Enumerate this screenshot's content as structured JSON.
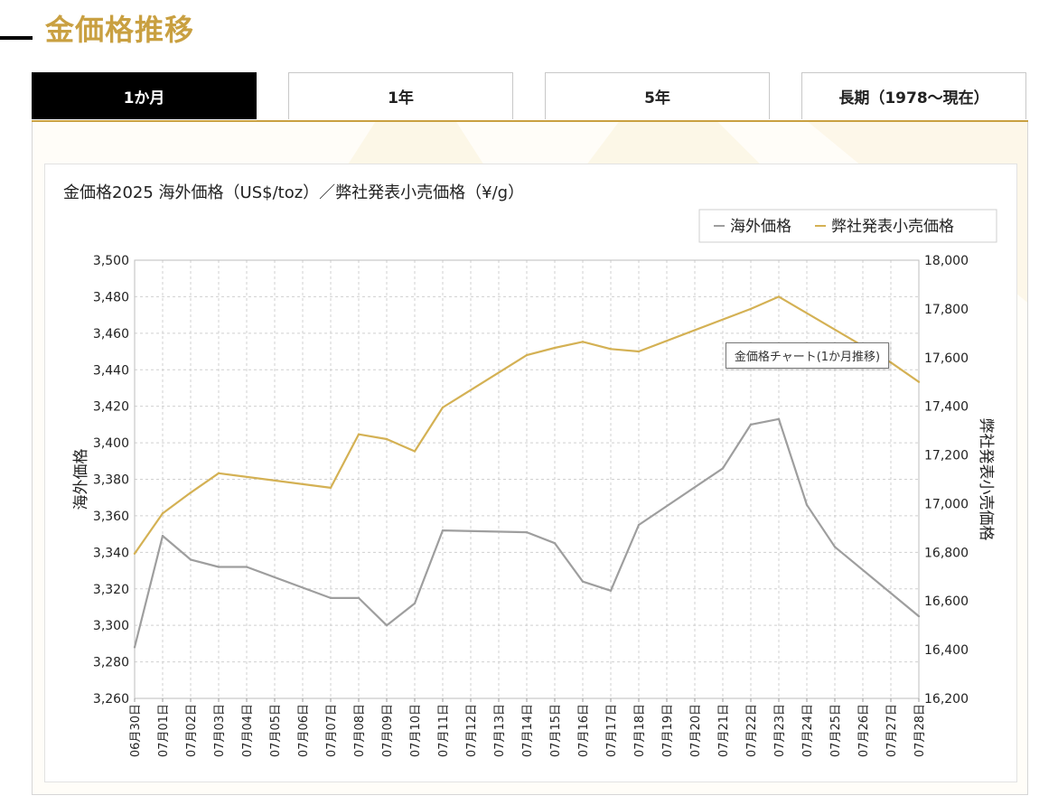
{
  "page": {
    "title": "金価格推移"
  },
  "tabs": [
    {
      "label": "1か月",
      "active": true
    },
    {
      "label": "1年",
      "active": false
    },
    {
      "label": "5年",
      "active": false
    },
    {
      "label": "長期（1978～現在）",
      "active": false
    }
  ],
  "tooltip": {
    "text": "金価格チャート(1か月推移)"
  },
  "colors": {
    "accent": "#c9a041",
    "overseas": "#9e9e9e",
    "retail": "#d4b154"
  },
  "chart_data": {
    "type": "line",
    "title": "金価格2025 海外価格（US$/toz）／弊社発表小売価格（¥/g）",
    "legend": {
      "position": "top-right",
      "entries": [
        "海外価格",
        "弊社発表小売価格"
      ]
    },
    "grid": true,
    "x": [
      "06月30日",
      "07月01日",
      "07月02日",
      "07月03日",
      "07月04日",
      "07月05日",
      "07月06日",
      "07月07日",
      "07月08日",
      "07月09日",
      "07月10日",
      "07月11日",
      "07月12日",
      "07月13日",
      "07月14日",
      "07月15日",
      "07月16日",
      "07月17日",
      "07月18日",
      "07月19日",
      "07月20日",
      "07月21日",
      "07月22日",
      "07月23日",
      "07月24日",
      "07月25日",
      "07月26日",
      "07月27日",
      "07月28日"
    ],
    "y_left": {
      "label": "海外価格",
      "range": [
        3260,
        3500
      ],
      "ticks": [
        "3,260",
        "3,280",
        "3,300",
        "3,320",
        "3,340",
        "3,360",
        "3,380",
        "3,400",
        "3,420",
        "3,440",
        "3,460",
        "3,480",
        "3,500"
      ]
    },
    "y_right": {
      "label": "弊社発表小売価格",
      "range": [
        16200,
        18000
      ],
      "ticks": [
        "16,200",
        "16,400",
        "16,600",
        "16,800",
        "17,000",
        "17,200",
        "17,400",
        "17,600",
        "17,800",
        "18,000"
      ]
    },
    "series": [
      {
        "name": "海外価格",
        "axis": "left",
        "color": "#9e9e9e",
        "values": [
          3288,
          3349,
          3336,
          3332,
          3332,
          null,
          null,
          3315,
          3315,
          3300,
          3312,
          3352,
          null,
          null,
          3351,
          3345,
          3324,
          3319,
          3355,
          null,
          null,
          3386,
          3410,
          3413,
          3366,
          3343,
          null,
          null,
          3305
        ]
      },
      {
        "name": "弊社発表小売価格",
        "axis": "right",
        "color": "#d4b154",
        "values": [
          16795,
          16960,
          17045,
          17125,
          null,
          null,
          null,
          17065,
          17285,
          17265,
          17215,
          17395,
          null,
          null,
          17610,
          17640,
          17665,
          17635,
          17625,
          null,
          null,
          null,
          17800,
          17850,
          null,
          null,
          null,
          17580,
          17500
        ]
      }
    ]
  }
}
